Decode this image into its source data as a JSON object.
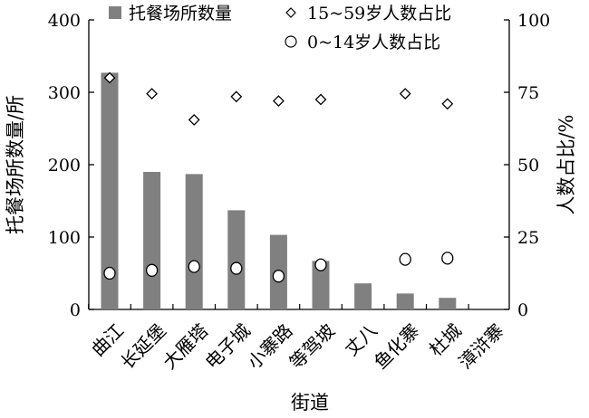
{
  "chart_data": {
    "type": "bar",
    "categories": [
      "曲江",
      "长延堡",
      "大雁塔",
      "电子城",
      "小寨路",
      "等驾坡",
      "丈八",
      "鱼化寨",
      "杜城",
      "漳浒寨"
    ],
    "series": [
      {
        "name": "托餐场所数量",
        "type": "bar",
        "axis": "left",
        "color": "#808080",
        "values": [
          327,
          190,
          187,
          137,
          103,
          67,
          36,
          22,
          16,
          null
        ]
      },
      {
        "name": "15~59岁人数占比",
        "type": "scatter",
        "marker": "diamond",
        "axis": "right",
        "values": [
          80,
          74.5,
          65.5,
          73.5,
          72,
          72.5,
          null,
          74.5,
          71,
          null
        ]
      },
      {
        "name": "0~14岁人数占比",
        "type": "scatter",
        "marker": "circle",
        "axis": "right",
        "values": [
          12.5,
          13.5,
          14.8,
          14.2,
          11.5,
          15.4,
          null,
          17.3,
          17.7,
          null
        ]
      }
    ],
    "xlabel": "街道",
    "ylabel_left": "托餐场所数量/所",
    "ylabel_right": "人数占比/%",
    "ylim_left": [
      0,
      400
    ],
    "ylim_right": [
      0,
      100
    ],
    "yticks_left": [
      "0",
      "100",
      "200",
      "300",
      "400"
    ],
    "yticks_right": [
      "0",
      "25",
      "50",
      "75",
      "100"
    ],
    "grid": false,
    "legend_position": "top"
  }
}
